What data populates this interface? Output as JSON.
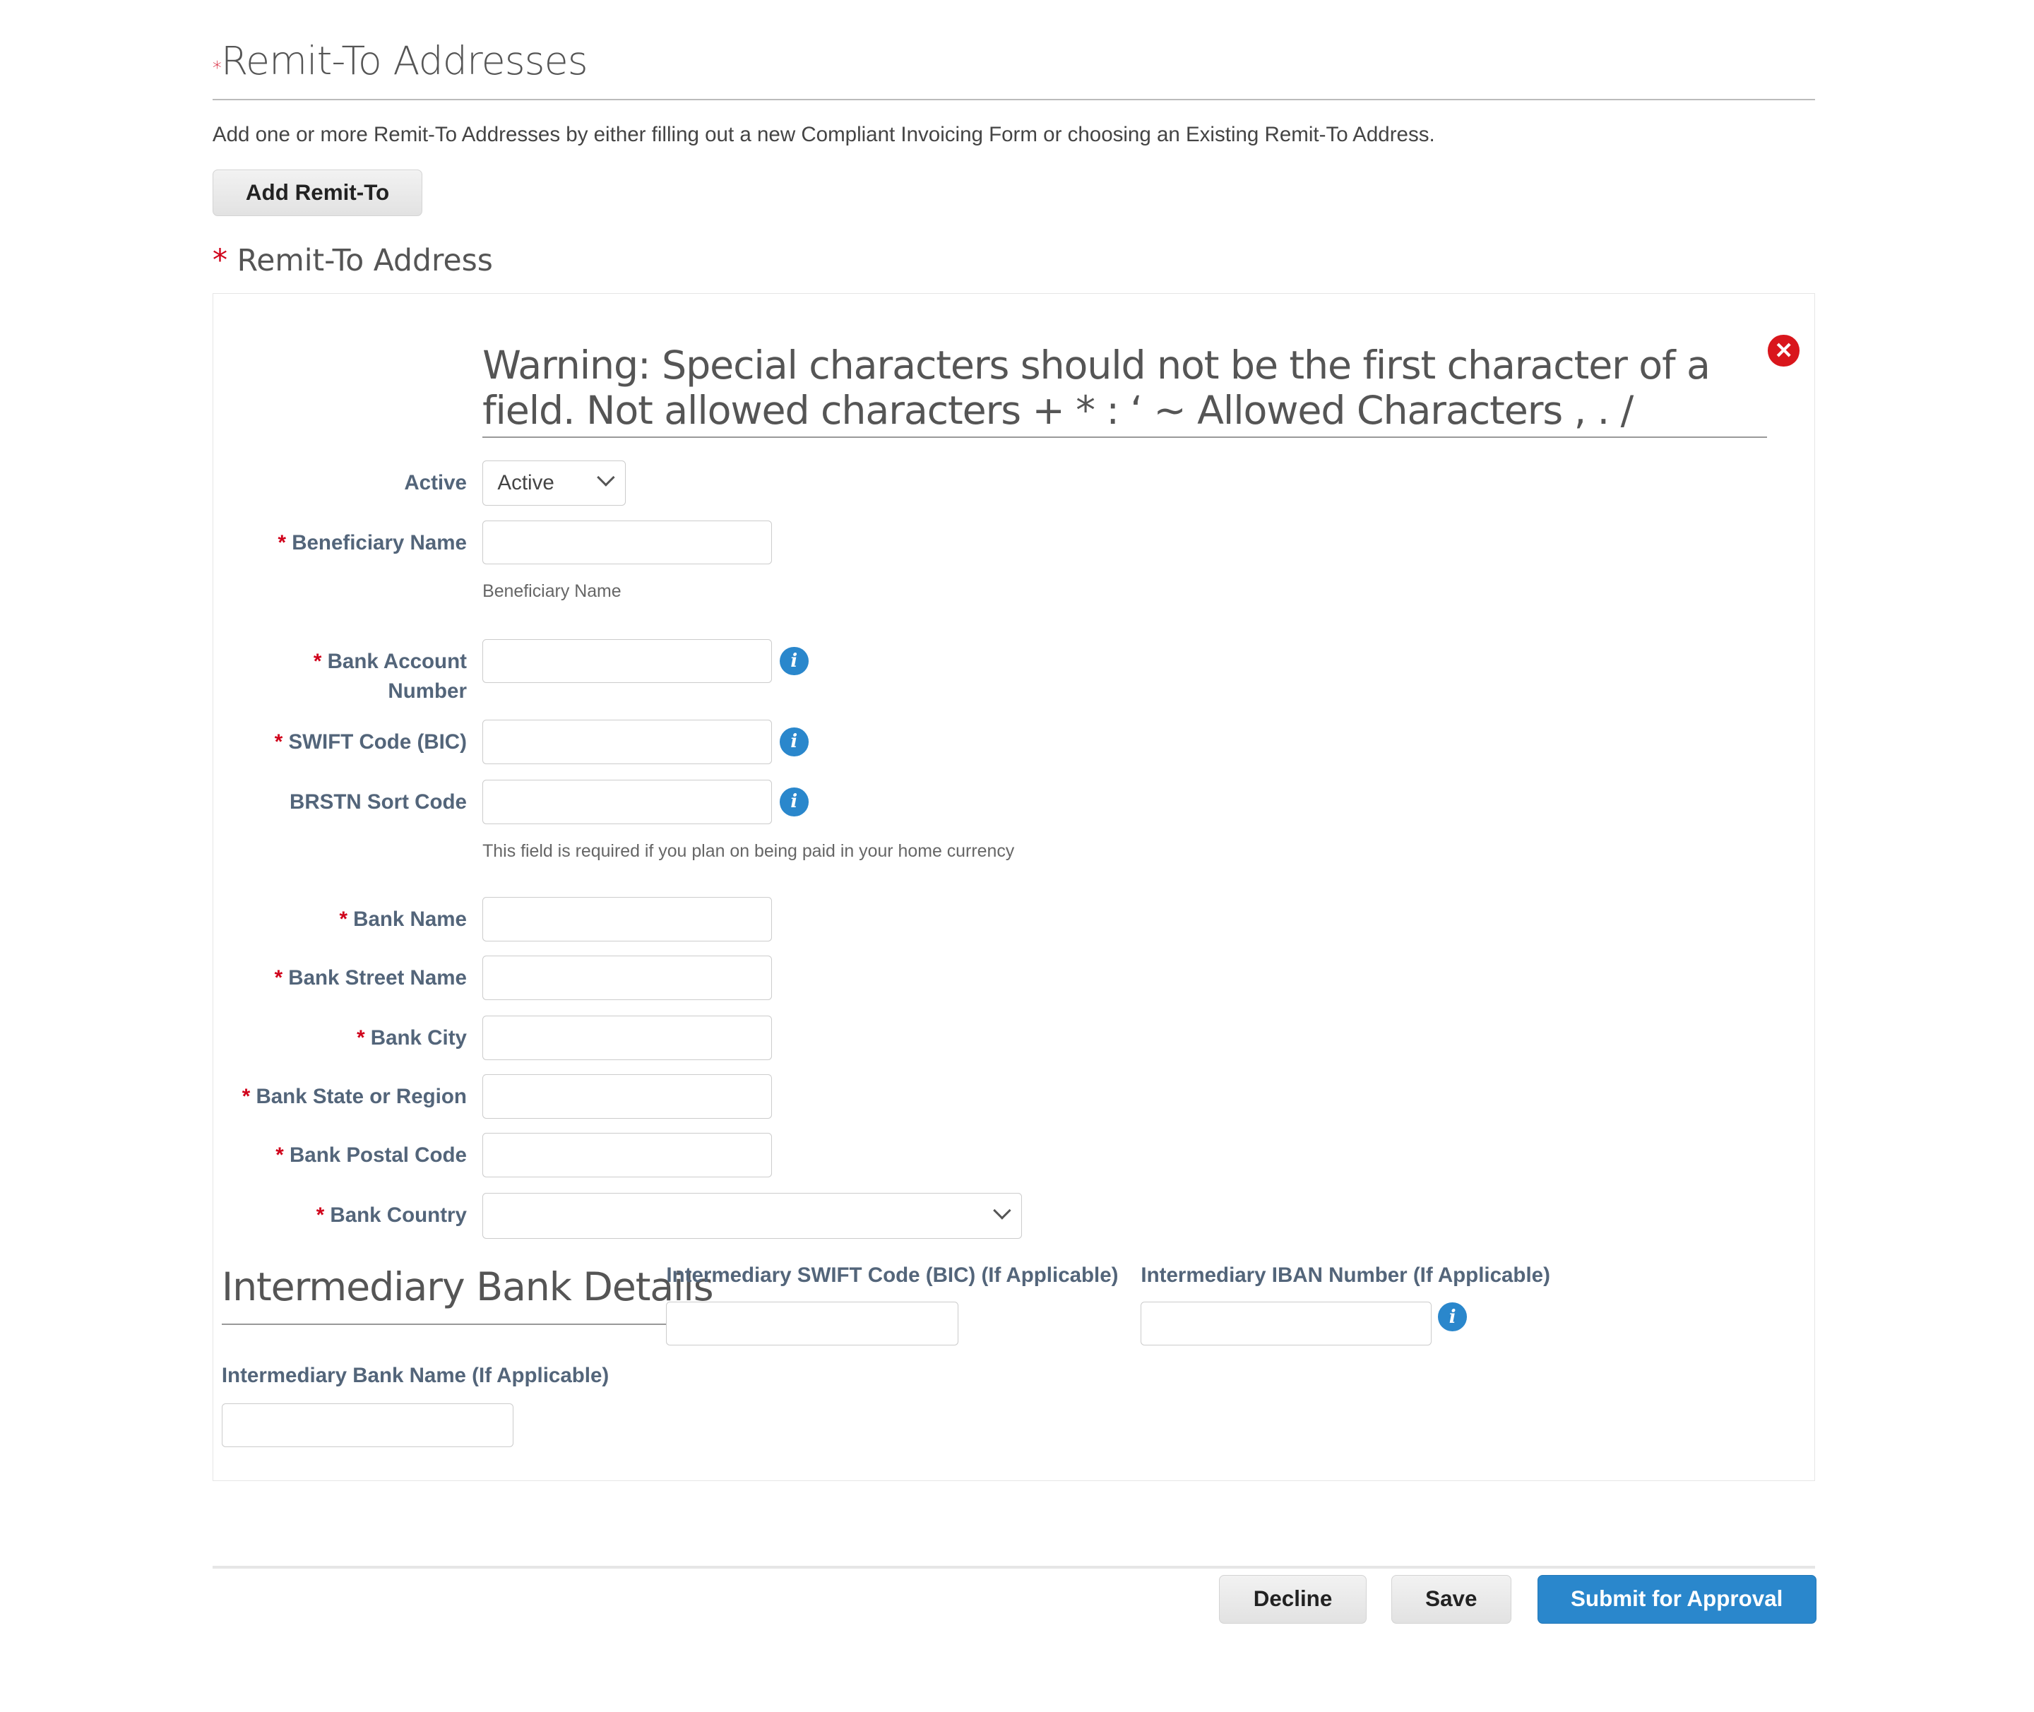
{
  "section": {
    "title": "Remit-To Addresses",
    "required_mark": "*",
    "description": "Add one or more Remit-To Addresses by either filling out a new Compliant Invoicing Form or choosing an Existing Remit-To Address.",
    "add_button": "Add Remit-To"
  },
  "address": {
    "title": "Remit-To Address",
    "required_mark": "*",
    "warning": "Warning: Special characters should not be the first character of a field. Not allowed characters + * : ‘ ~ Allowed Characters , . /",
    "close_icon": "close-circle-icon",
    "fields": {
      "active": {
        "label": "Active",
        "value": "Active"
      },
      "beneficiary": {
        "label": "Beneficiary Name",
        "value": "",
        "help": "Beneficiary Name"
      },
      "account": {
        "label1": "Bank Account",
        "label2": "Number",
        "value": ""
      },
      "swift": {
        "label": "SWIFT Code (BIC)",
        "value": ""
      },
      "brstn": {
        "label": "BRSTN Sort Code",
        "value": "",
        "help": "This field is required if you plan on being paid in your home currency"
      },
      "bank_name": {
        "label": "Bank Name",
        "value": ""
      },
      "street": {
        "label": "Bank Street Name",
        "value": ""
      },
      "city": {
        "label": "Bank City",
        "value": ""
      },
      "state": {
        "label": "Bank State or Region",
        "value": ""
      },
      "postal": {
        "label": "Bank Postal Code",
        "value": ""
      },
      "country": {
        "label": "Bank Country",
        "value": ""
      }
    },
    "intermediary": {
      "title": "Intermediary Bank Details",
      "swift_label": "Intermediary SWIFT Code (BIC) (If Applicable)",
      "iban_label": "Intermediary IBAN Number (If Applicable)",
      "name_label": "Intermediary Bank Name (If Applicable)"
    }
  },
  "footer": {
    "decline": "Decline",
    "save": "Save",
    "submit": "Submit for Approval"
  },
  "colors": {
    "accent": "#2a87cc",
    "required": "#d0021b",
    "label": "#53657a"
  }
}
